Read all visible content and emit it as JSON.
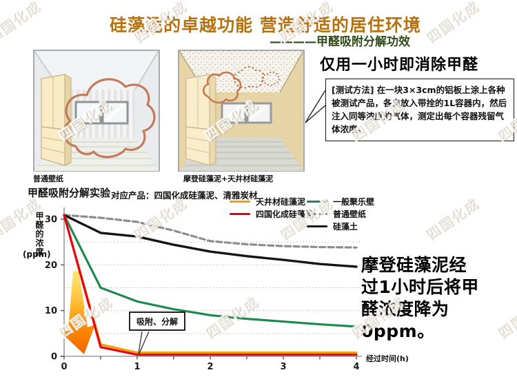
{
  "header": {
    "title": "硅藻泥的卓越功能 营造舒适的居住环境",
    "subtitle": "————甲醛吸附分解功效"
  },
  "watermark_text": "四国化成",
  "rooms": {
    "left_caption": "普通壁纸",
    "right_caption": "摩登硅藻泥+天井材硅藻泥"
  },
  "claim": {
    "headline": "仅用一小时即消除甲醛",
    "method_text": "[测试方法] 在一块3×3cm的铝板上涂上各种被测试产品，各自放入带拴的1L容器内，然后注入同等浓度的气体，测定出每个容器残留气体浓度。"
  },
  "result_note": "摩登硅藻泥经\n过1小时后将甲\n醛浓度降为0ppm。",
  "chart_data": {
    "type": "line",
    "title": "甲醛吸附分解实验",
    "subtitle": "对应产品：四国化成硅藻泥、清雅炭材",
    "ylabel": "甲醛的浓度",
    "ylabel_unit": "(ppm)",
    "xlabel": "经过时间(h)",
    "annotation": "吸附、分解",
    "x": [
      0,
      0.5,
      1,
      1.5,
      2,
      2.5,
      3,
      3.5,
      4
    ],
    "xticks": [
      0,
      1,
      2,
      3,
      4
    ],
    "yticks": [
      0,
      10,
      20,
      30
    ],
    "gridlines_y": [
      5,
      10,
      15,
      20,
      25
    ],
    "xlim": [
      0,
      4
    ],
    "ylim": [
      0,
      32
    ],
    "grid": "dotted-horizontal",
    "legend_position": "top-right",
    "series": [
      {
        "name": "天井材硅藻泥",
        "color": "#f0a000",
        "style": "solid",
        "values": [
          30.9,
          2.6,
          0.8,
          0.8,
          0.8,
          0.8,
          0.8,
          0.8,
          0.8
        ]
      },
      {
        "name": "四国化成硅藻泥",
        "color": "#e60012",
        "style": "solid",
        "values": [
          30.9,
          2.0,
          0.35,
          0.35,
          0.35,
          0.35,
          0.35,
          0.35,
          0.35
        ]
      },
      {
        "name": "一般聚乐壁",
        "color": "#1c8a4c",
        "style": "solid",
        "values": [
          30.9,
          15.0,
          12.0,
          10.3,
          9.0,
          8.2,
          7.6,
          7.0,
          6.5
        ]
      },
      {
        "name": "普通壁纸",
        "color": "#8c8c8c",
        "style": "dashed",
        "values": [
          30.9,
          30.3,
          29.4,
          27.5,
          25.2,
          24.5,
          24.1,
          23.9,
          23.8
        ]
      },
      {
        "name": "硅藻土",
        "color": "#141414",
        "style": "solid",
        "values": [
          30.9,
          27.0,
          26.2,
          24.4,
          22.9,
          21.9,
          21.1,
          20.2,
          19.6
        ]
      }
    ]
  }
}
